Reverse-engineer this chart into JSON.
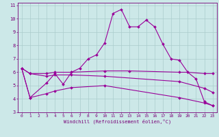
{
  "xlabel": "Windchill (Refroidissement éolien,°C)",
  "background_color": "#cce8e8",
  "grid_color": "#aacccc",
  "line_color": "#990099",
  "xlim": [
    -0.5,
    23.5
  ],
  "ylim": [
    3,
    11.2
  ],
  "yticks": [
    3,
    4,
    5,
    6,
    7,
    8,
    9,
    10,
    11
  ],
  "xticks": [
    0,
    1,
    2,
    3,
    4,
    5,
    6,
    7,
    8,
    9,
    10,
    11,
    12,
    13,
    14,
    15,
    16,
    17,
    18,
    19,
    20,
    21,
    22,
    23
  ],
  "series": [
    {
      "x": [
        0,
        1,
        3,
        4,
        5,
        6,
        7,
        8,
        9,
        10,
        11,
        12,
        13,
        14,
        15,
        16,
        17,
        18,
        19,
        20,
        21,
        22,
        23
      ],
      "y": [
        6.3,
        4.1,
        5.2,
        5.9,
        5.1,
        6.0,
        6.3,
        7.0,
        7.3,
        8.2,
        10.4,
        10.7,
        9.4,
        9.4,
        9.9,
        9.4,
        8.1,
        7.0,
        6.9,
        6.0,
        5.5,
        3.8,
        3.5
      ]
    },
    {
      "x": [
        0,
        1,
        3,
        4,
        6,
        10,
        13,
        19,
        20,
        22,
        23
      ],
      "y": [
        6.3,
        5.9,
        5.9,
        6.0,
        6.0,
        6.1,
        6.1,
        6.0,
        6.0,
        5.9,
        5.9
      ]
    },
    {
      "x": [
        0,
        1,
        3,
        4,
        6,
        10,
        19,
        22,
        23
      ],
      "y": [
        6.3,
        5.9,
        5.7,
        5.8,
        5.8,
        5.7,
        5.3,
        4.8,
        4.5
      ]
    },
    {
      "x": [
        0,
        1,
        3,
        4,
        6,
        10,
        19,
        22,
        23
      ],
      "y": [
        6.3,
        4.1,
        4.4,
        4.6,
        4.85,
        5.0,
        4.1,
        3.7,
        3.5
      ]
    }
  ]
}
